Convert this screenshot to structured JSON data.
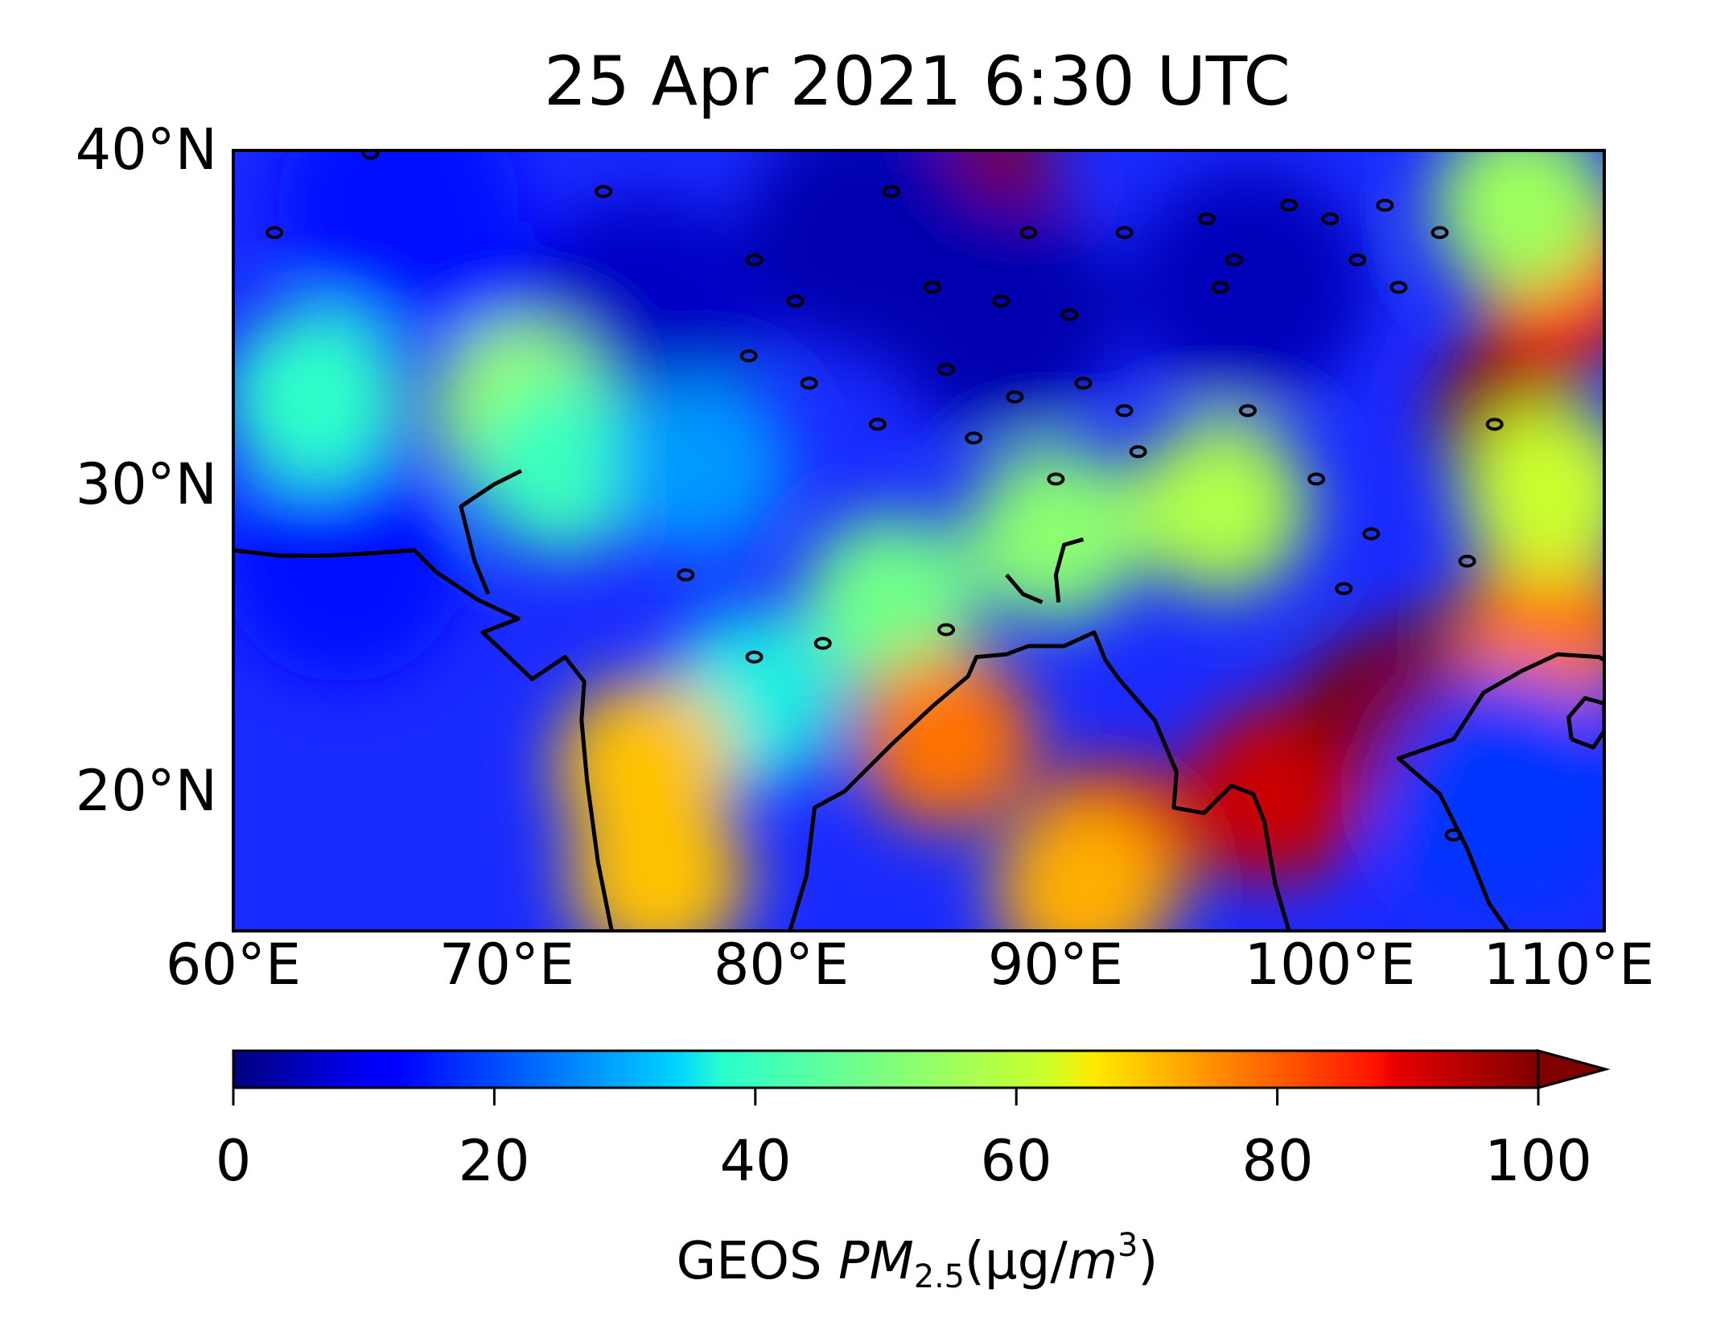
{
  "chart_data": {
    "type": "heatmap",
    "title": "25 Apr 2021 6:30 UTC",
    "map": {
      "x_axis": {
        "range_deg_e": [
          60,
          110
        ],
        "ticks": [
          60,
          70,
          80,
          90,
          100,
          110
        ],
        "tick_labels": [
          "60°E",
          "70°E",
          "80°E",
          "90°E",
          "100°E",
          "110°E"
        ]
      },
      "y_axis": {
        "range_deg_n": [
          11.5,
          40
        ],
        "ticks": [
          20,
          30,
          40
        ],
        "tick_labels": [
          "20°N",
          "30°N",
          "40°N"
        ]
      },
      "coastlines": true
    },
    "colorbar": {
      "orientation": "horizontal",
      "colormap": "jet",
      "range": [
        0,
        100
      ],
      "extend": "max",
      "ticks": [
        0,
        20,
        40,
        60,
        80,
        100
      ],
      "tick_labels": [
        "0",
        "20",
        "40",
        "60",
        "80",
        "100"
      ],
      "label_prefix": "GEOS ",
      "label_var": "PM",
      "label_sub": "2.5",
      "label_unit_open": "(µg/",
      "label_unit_var": "m",
      "label_unit_sup": "3",
      "label_unit_close": ")"
    },
    "features": [
      {
        "lon": 87.5,
        "lat": 38.8,
        "pm25": 100
      },
      {
        "lon": 64,
        "lat": 25,
        "pm25": 14
      },
      {
        "lon": 66,
        "lat": 38,
        "pm25": 14
      },
      {
        "lon": 72,
        "lat": 33,
        "pm25": 14
      },
      {
        "lon": 75,
        "lat": 34,
        "pm25": 6
      },
      {
        "lon": 88,
        "lat": 34,
        "pm25": 4
      },
      {
        "lon": 97,
        "lat": 35,
        "pm25": 5
      },
      {
        "lon": 83,
        "lat": 37,
        "pm25": 4
      },
      {
        "lon": 63,
        "lat": 31,
        "pm25": 38
      },
      {
        "lon": 70.5,
        "lat": 30.5,
        "pm25": 55
      },
      {
        "lon": 72,
        "lat": 28.5,
        "pm25": 40
      },
      {
        "lon": 77,
        "lat": 28.5,
        "pm25": 28
      },
      {
        "lon": 90,
        "lat": 26,
        "pm25": 52
      },
      {
        "lon": 96,
        "lat": 27,
        "pm25": 58
      },
      {
        "lon": 84,
        "lat": 23.5,
        "pm25": 48
      },
      {
        "lon": 79,
        "lat": 20,
        "pm25": 36
      },
      {
        "lon": 86,
        "lat": 18.5,
        "pm25": 78
      },
      {
        "lon": 92,
        "lat": 14.5,
        "pm25": 90
      },
      {
        "lon": 91,
        "lat": 13,
        "pm25": 72
      },
      {
        "lon": 98,
        "lat": 16.5,
        "pm25": 92
      },
      {
        "lon": 101.5,
        "lat": 19.5,
        "pm25": 100
      },
      {
        "lon": 104,
        "lat": 20.5,
        "pm25": 100
      },
      {
        "lon": 106.5,
        "lat": 30.5,
        "pm25": 98
      },
      {
        "lon": 108.5,
        "lat": 35.5,
        "pm25": 85
      },
      {
        "lon": 108,
        "lat": 22.5,
        "pm25": 78
      },
      {
        "lon": 108,
        "lat": 27.5,
        "pm25": 62
      },
      {
        "lon": 107,
        "lat": 38,
        "pm25": 55
      },
      {
        "lon": 106.5,
        "lat": 16.5,
        "pm25": 18
      },
      {
        "lon": 75.5,
        "lat": 13.5,
        "pm25": 70
      },
      {
        "lon": 75,
        "lat": 17.5,
        "pm25": 70
      }
    ],
    "coast_west_india": [
      [
        73.8,
        11.5
      ],
      [
        73.3,
        14
      ],
      [
        72.9,
        17
      ],
      [
        72.7,
        19.2
      ],
      [
        72.8,
        20.6
      ],
      [
        72.1,
        21.5
      ],
      [
        70.9,
        20.7
      ],
      [
        69.1,
        22.4
      ],
      [
        70.4,
        22.9
      ],
      [
        68.9,
        23.6
      ],
      [
        67.4,
        24.6
      ],
      [
        66.6,
        25.4
      ],
      [
        65.2,
        25.3
      ],
      [
        63.4,
        25.2
      ],
      [
        61.7,
        25.2
      ],
      [
        60,
        25.4
      ]
    ],
    "coast_east_india": [
      [
        80.3,
        11.5
      ],
      [
        80.9,
        13.5
      ],
      [
        81.2,
        16.0
      ],
      [
        82.3,
        16.6
      ],
      [
        84.0,
        18.3
      ],
      [
        85.5,
        19.7
      ],
      [
        86.8,
        20.8
      ],
      [
        87.1,
        21.5
      ],
      [
        88.2,
        21.6
      ],
      [
        89.0,
        21.9
      ],
      [
        90.3,
        21.9
      ],
      [
        91.4,
        22.4
      ],
      [
        91.8,
        21.4
      ],
      [
        92.3,
        20.7
      ],
      [
        93.6,
        19.2
      ],
      [
        94.4,
        17.3
      ],
      [
        94.3,
        16.0
      ],
      [
        95.4,
        15.8
      ],
      [
        96.4,
        16.8
      ],
      [
        97.2,
        16.5
      ],
      [
        97.6,
        15.5
      ],
      [
        98.0,
        13.2
      ],
      [
        98.5,
        11.5
      ]
    ],
    "coast_indochina": [
      [
        106.5,
        11.5
      ],
      [
        105.8,
        12.5
      ],
      [
        105,
        14.5
      ],
      [
        104,
        16.5
      ],
      [
        102.5,
        17.8
      ],
      [
        104.5,
        18.5
      ],
      [
        105.6,
        20.2
      ],
      [
        107,
        21
      ],
      [
        108.3,
        21.6
      ],
      [
        109.8,
        21.5
      ],
      [
        110,
        21.4
      ]
    ],
    "coast_hainan": [
      [
        108.8,
        18.5
      ],
      [
        109.6,
        18.2
      ],
      [
        110,
        18.8
      ],
      [
        110,
        19.8
      ],
      [
        109.3,
        20.0
      ],
      [
        108.7,
        19.3
      ],
      [
        108.8,
        18.5
      ]
    ],
    "coast_indus": [
      [
        69.3,
        23.8
      ],
      [
        68.8,
        25
      ],
      [
        68.3,
        27
      ],
      [
        69.5,
        27.8
      ],
      [
        70.5,
        28.3
      ]
    ],
    "coast_inland_a": [
      [
        88.2,
        24.5
      ],
      [
        88.8,
        23.8
      ],
      [
        89.5,
        23.5
      ]
    ],
    "coast_inland_b": [
      [
        90.1,
        23.5
      ],
      [
        90.0,
        24.5
      ],
      [
        90.3,
        25.6
      ],
      [
        91.0,
        25.8
      ]
    ],
    "lakes": [
      [
        85.5,
        35
      ],
      [
        88,
        34.5
      ],
      [
        90.5,
        34
      ],
      [
        86,
        32
      ],
      [
        88.5,
        31
      ],
      [
        91,
        31.5
      ],
      [
        92.5,
        30.5
      ],
      [
        93,
        29
      ],
      [
        100,
        37.5
      ],
      [
        102,
        38
      ],
      [
        104,
        37
      ],
      [
        101,
        36
      ],
      [
        97,
        30.5
      ],
      [
        79,
        36
      ],
      [
        78.8,
        32.5
      ],
      [
        81,
        31.5
      ],
      [
        83.5,
        30
      ],
      [
        87,
        29.5
      ],
      [
        90,
        28
      ],
      [
        96.5,
        36
      ],
      [
        96,
        35
      ],
      [
        84,
        38.5
      ],
      [
        65,
        39.9
      ],
      [
        73.5,
        38.5
      ],
      [
        61.5,
        37
      ],
      [
        80.5,
        34.5
      ],
      [
        89,
        37
      ],
      [
        92.5,
        37
      ],
      [
        95.5,
        37.5
      ],
      [
        98.5,
        38
      ],
      [
        102.5,
        35
      ],
      [
        99.5,
        28
      ],
      [
        106,
        30
      ],
      [
        105,
        25
      ],
      [
        101.5,
        26
      ],
      [
        100.5,
        24
      ],
      [
        104.5,
        15
      ],
      [
        81.5,
        22
      ],
      [
        79,
        21.5
      ],
      [
        86,
        22.5
      ],
      [
        76.5,
        24.5
      ]
    ]
  }
}
